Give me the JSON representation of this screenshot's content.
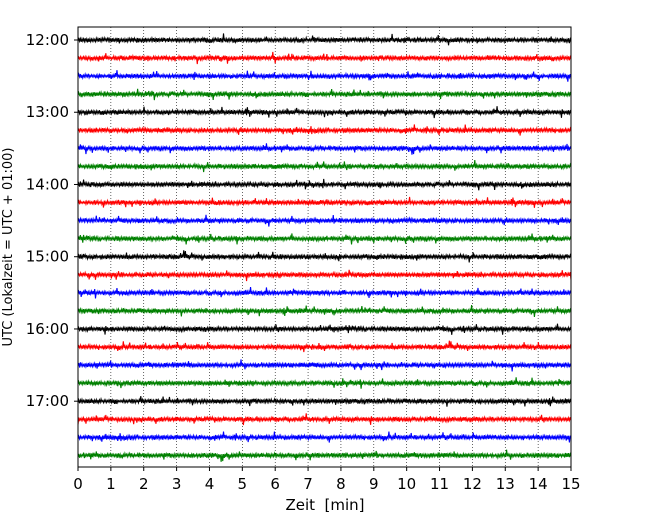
{
  "chart_data": {
    "type": "line",
    "title": "",
    "xlabel": "Zeit  [min]",
    "ylabel": "UTC (Lokalzeit = UTC + 01:00)",
    "xlim": [
      0,
      15
    ],
    "x_ticks": [
      0,
      1,
      2,
      3,
      4,
      5,
      6,
      7,
      8,
      9,
      10,
      11,
      12,
      13,
      14,
      15
    ],
    "x_tick_labels": [
      "0",
      "1",
      "2",
      "3",
      "4",
      "5",
      "6",
      "7",
      "8",
      "9",
      "10",
      "11",
      "12",
      "13",
      "14",
      "15"
    ],
    "y_tick_labels": [
      "12:00",
      "13:00",
      "14:00",
      "15:00",
      "16:00",
      "17:00"
    ],
    "grid": "vertical dotted lines at each minute",
    "trace_interval_minutes": 15,
    "trace_start": "12:00",
    "trace_end": "17:45",
    "trace_colors": [
      "#000000",
      "#ff0000",
      "#0000ff",
      "#008000"
    ],
    "traces": [
      {
        "start": "12:00",
        "color": "#000000"
      },
      {
        "start": "12:15",
        "color": "#ff0000"
      },
      {
        "start": "12:30",
        "color": "#0000ff"
      },
      {
        "start": "12:45",
        "color": "#008000"
      },
      {
        "start": "13:00",
        "color": "#000000"
      },
      {
        "start": "13:15",
        "color": "#ff0000"
      },
      {
        "start": "13:30",
        "color": "#0000ff"
      },
      {
        "start": "13:45",
        "color": "#008000"
      },
      {
        "start": "14:00",
        "color": "#000000"
      },
      {
        "start": "14:15",
        "color": "#ff0000"
      },
      {
        "start": "14:30",
        "color": "#0000ff"
      },
      {
        "start": "14:45",
        "color": "#008000"
      },
      {
        "start": "15:00",
        "color": "#000000"
      },
      {
        "start": "15:15",
        "color": "#ff0000"
      },
      {
        "start": "15:30",
        "color": "#0000ff"
      },
      {
        "start": "15:45",
        "color": "#008000"
      },
      {
        "start": "16:00",
        "color": "#000000"
      },
      {
        "start": "16:15",
        "color": "#ff0000"
      },
      {
        "start": "16:30",
        "color": "#0000ff"
      },
      {
        "start": "16:45",
        "color": "#008000"
      },
      {
        "start": "17:00",
        "color": "#000000"
      },
      {
        "start": "17:15",
        "color": "#ff0000"
      },
      {
        "start": "17:30",
        "color": "#0000ff"
      },
      {
        "start": "17:45",
        "color": "#008000"
      }
    ]
  }
}
